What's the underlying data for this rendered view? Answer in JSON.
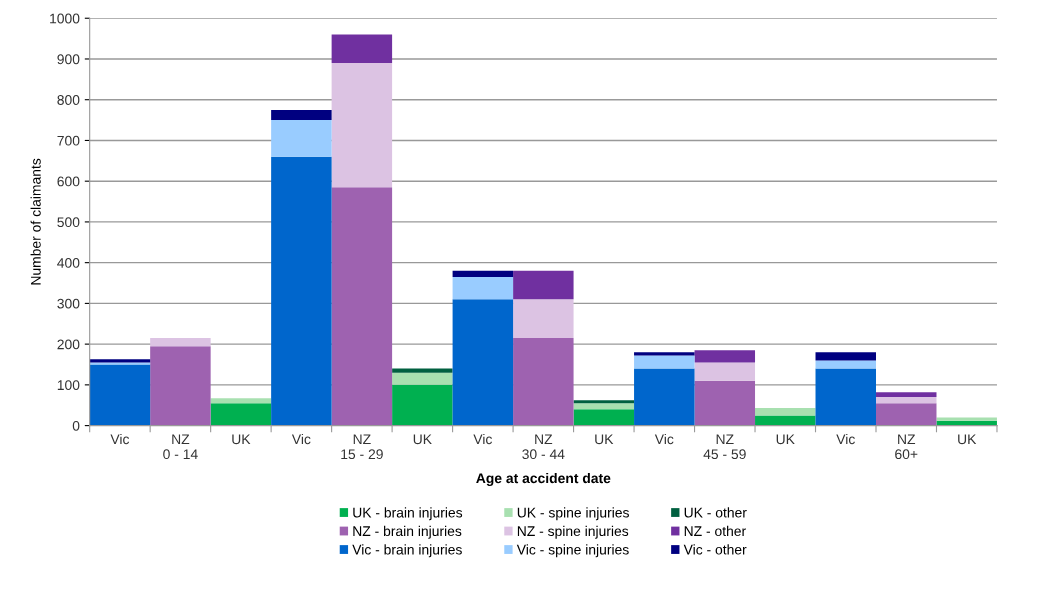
{
  "chart_data": {
    "type": "bar",
    "stacked": true,
    "xlabel": "Age at accident date",
    "ylabel": "Number of claimants",
    "categories": [
      "Vic",
      "NZ\n0 - 14",
      "UK",
      "Vic",
      "NZ\n15 - 29",
      "UK",
      "Vic",
      "NZ\n30 - 44",
      "UK",
      "Vic",
      "NZ\n45 - 59",
      "UK",
      "Vic",
      "NZ\n60+",
      "UK"
    ],
    "ylim": [
      0,
      1000
    ],
    "yticks": [
      0,
      100,
      200,
      300,
      400,
      500,
      600,
      700,
      800,
      900,
      1000
    ],
    "grid": "y",
    "legend": "bottom",
    "series": [
      {
        "name": "UK - brain injuries",
        "color": "#00b050",
        "values": [
          null,
          null,
          55,
          null,
          null,
          100,
          null,
          null,
          40,
          null,
          null,
          25,
          null,
          null,
          12
        ]
      },
      {
        "name": "UK - spine injuries",
        "color": "#a8e0b0",
        "values": [
          null,
          null,
          12,
          null,
          null,
          30,
          null,
          null,
          15,
          null,
          null,
          18,
          null,
          null,
          8
        ]
      },
      {
        "name": "UK - other",
        "color": "#006040",
        "values": [
          null,
          null,
          0,
          null,
          null,
          10,
          null,
          null,
          7,
          null,
          null,
          0,
          null,
          null,
          null
        ]
      },
      {
        "name": "NZ - brain injuries",
        "color": "#9e62b0",
        "values": [
          null,
          195,
          null,
          null,
          585,
          null,
          null,
          215,
          null,
          null,
          110,
          null,
          null,
          55,
          null
        ]
      },
      {
        "name": "NZ - spine injuries",
        "color": "#dcc3e3",
        "values": [
          null,
          20,
          null,
          null,
          305,
          null,
          null,
          95,
          null,
          null,
          45,
          null,
          null,
          15,
          null
        ]
      },
      {
        "name": "NZ - other",
        "color": "#7030a0",
        "values": [
          null,
          0,
          null,
          null,
          70,
          null,
          null,
          70,
          null,
          null,
          30,
          null,
          null,
          12,
          null
        ]
      },
      {
        "name": "Vic - brain injuries",
        "color": "#0066cc",
        "values": [
          150,
          null,
          null,
          660,
          null,
          null,
          310,
          null,
          null,
          140,
          null,
          null,
          140,
          null,
          null
        ]
      },
      {
        "name": "Vic - spine injuries",
        "color": "#99ccff",
        "values": [
          5,
          null,
          null,
          90,
          null,
          null,
          55,
          null,
          null,
          32,
          null,
          null,
          20,
          null,
          null
        ]
      },
      {
        "name": "Vic - other",
        "color": "#000080",
        "values": [
          8,
          null,
          null,
          25,
          null,
          null,
          15,
          null,
          null,
          8,
          null,
          null,
          20,
          null,
          null
        ]
      }
    ]
  }
}
